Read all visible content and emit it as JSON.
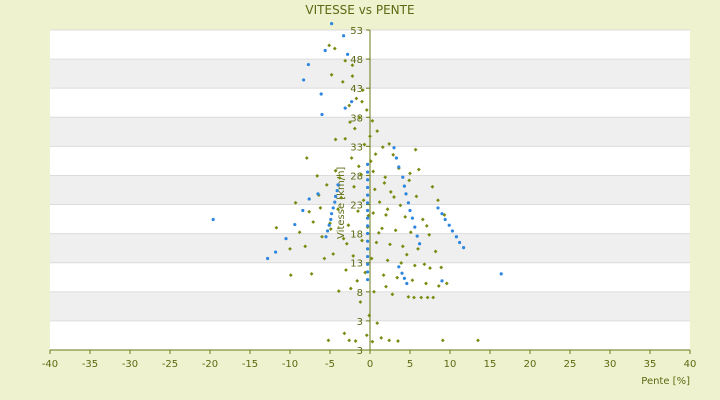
{
  "chart_data": {
    "type": "scatter",
    "title": "VITESSE vs PENTE",
    "xlabel": "Pente [%]",
    "ylabel": "Vitesse [km/h]",
    "xlim": [
      -40,
      40
    ],
    "ylim": [
      3,
      53
    ],
    "x_ticks": [
      "-40",
      "-35",
      "-30",
      "-25",
      "-20",
      "-15",
      "-10",
      "-5",
      "0",
      "5",
      "10",
      "15",
      "20",
      "25",
      "30",
      "35",
      "40"
    ],
    "y_ticks": [
      "53",
      "48",
      "43",
      "38",
      "33",
      "28",
      "23",
      "18",
      "13",
      "8",
      "3",
      "3"
    ],
    "grid": "horizontal alternating bands",
    "legend": "none",
    "colors": {
      "background": "#eef2cf",
      "band_light": "#ffffff",
      "band_dark": "#efefef",
      "axis": "#6b7a18",
      "text": "#5b6a12",
      "series_olive": "#7a8a10",
      "series_blue": "#2e86de"
    },
    "series": [
      {
        "color": "#7a8a10",
        "shape": "diamond",
        "points": [
          [
            -5.1,
            50.6
          ],
          [
            -4.4,
            50.1
          ],
          [
            -3.1,
            48.2
          ],
          [
            -4.8,
            46.0
          ],
          [
            -2.2,
            47.5
          ],
          [
            -3.4,
            44.9
          ],
          [
            -1.7,
            42.3
          ],
          [
            -2.6,
            41.2
          ],
          [
            -1.3,
            39.3
          ],
          [
            -0.4,
            40.5
          ],
          [
            0.3,
            38.8
          ],
          [
            -1.9,
            37.6
          ],
          [
            0.9,
            37.2
          ],
          [
            -3.1,
            36.0
          ],
          [
            -0.7,
            35.1
          ],
          [
            1.6,
            34.7
          ],
          [
            2.9,
            33.5
          ],
          [
            -2.3,
            33.0
          ],
          [
            0.1,
            32.5
          ],
          [
            3.6,
            31.4
          ],
          [
            -4.3,
            31.0
          ],
          [
            -1.1,
            30.4
          ],
          [
            1.9,
            30.0
          ],
          [
            4.9,
            29.5
          ],
          [
            -5.4,
            28.8
          ],
          [
            -2.0,
            28.5
          ],
          [
            0.6,
            28.1
          ],
          [
            2.6,
            27.7
          ],
          [
            5.8,
            27.0
          ],
          [
            -3.6,
            26.8
          ],
          [
            -0.8,
            26.4
          ],
          [
            1.2,
            26.1
          ],
          [
            3.8,
            25.6
          ],
          [
            -6.2,
            25.2
          ],
          [
            -4.0,
            25.0
          ],
          [
            -1.5,
            24.7
          ],
          [
            0.4,
            24.4
          ],
          [
            2.0,
            24.1
          ],
          [
            4.4,
            23.8
          ],
          [
            6.6,
            23.4
          ],
          [
            -7.1,
            23.0
          ],
          [
            -5.0,
            22.8
          ],
          [
            -2.7,
            22.5
          ],
          [
            -0.3,
            22.2
          ],
          [
            1.5,
            22.0
          ],
          [
            3.2,
            21.7
          ],
          [
            5.1,
            21.4
          ],
          [
            7.4,
            21.0
          ],
          [
            -6.0,
            20.7
          ],
          [
            -3.3,
            20.4
          ],
          [
            -1.0,
            20.1
          ],
          [
            0.8,
            19.8
          ],
          [
            2.5,
            19.5
          ],
          [
            4.1,
            19.2
          ],
          [
            6.0,
            18.8
          ],
          [
            8.2,
            18.4
          ],
          [
            -4.6,
            18.0
          ],
          [
            -2.1,
            17.7
          ],
          [
            0.2,
            17.3
          ],
          [
            2.2,
            17.0
          ],
          [
            3.9,
            16.6
          ],
          [
            5.6,
            16.2
          ],
          [
            7.5,
            15.8
          ],
          [
            -3.0,
            15.5
          ],
          [
            -0.6,
            15.1
          ],
          [
            1.7,
            14.7
          ],
          [
            3.4,
            14.3
          ],
          [
            5.3,
            13.9
          ],
          [
            7.0,
            13.4
          ],
          [
            8.6,
            13.0
          ],
          [
            -2.4,
            12.6
          ],
          [
            0.5,
            12.1
          ],
          [
            2.8,
            11.7
          ],
          [
            4.8,
            11.3
          ],
          [
            5.5,
            11.2
          ],
          [
            6.4,
            11.2
          ],
          [
            7.2,
            11.2
          ],
          [
            7.9,
            11.2
          ],
          [
            -1.2,
            10.5
          ],
          [
            -0.1,
            8.4
          ],
          [
            0.9,
            7.2
          ],
          [
            -0.4,
            5.3
          ],
          [
            0.3,
            4.3
          ],
          [
            -3.2,
            5.6
          ],
          [
            -2.6,
            4.5
          ],
          [
            1.4,
            4.9
          ],
          [
            2.4,
            4.5
          ],
          [
            3.5,
            4.4
          ],
          [
            -5.2,
            4.5
          ],
          [
            -1.8,
            4.4
          ],
          [
            9.1,
            4.5
          ],
          [
            13.5,
            4.5
          ],
          [
            -9.3,
            26.0
          ],
          [
            -7.9,
            33.0
          ],
          [
            -6.6,
            30.2
          ],
          [
            -8.8,
            21.4
          ],
          [
            -10.0,
            18.8
          ],
          [
            -11.7,
            22.1
          ],
          [
            -9.9,
            14.7
          ],
          [
            -7.3,
            14.9
          ],
          [
            -4.3,
            35.9
          ],
          [
            -2.5,
            38.6
          ],
          [
            2.4,
            35.2
          ],
          [
            5.7,
            34.3
          ],
          [
            6.1,
            31.2
          ],
          [
            7.8,
            28.5
          ],
          [
            8.5,
            26.4
          ],
          [
            9.3,
            24.1
          ],
          [
            7.1,
            22.4
          ],
          [
            5.0,
            30.6
          ],
          [
            -6.4,
            27.2
          ],
          [
            -7.6,
            24.6
          ],
          [
            -8.1,
            19.2
          ],
          [
            -4.9,
            21.9
          ],
          [
            -3.8,
            29.9
          ],
          [
            -1.4,
            31.7
          ],
          [
            0.7,
            33.6
          ],
          [
            1.8,
            29.1
          ],
          [
            3.0,
            26.9
          ],
          [
            -0.2,
            24.0
          ],
          [
            1.1,
            21.3
          ],
          [
            -2.9,
            19.6
          ],
          [
            -5.7,
            17.3
          ],
          [
            4.6,
            17.9
          ],
          [
            6.8,
            16.4
          ],
          [
            8.9,
            15.9
          ],
          [
            9.6,
            13.4
          ],
          [
            -1.6,
            13.8
          ],
          [
            -3.9,
            12.2
          ],
          [
            2.0,
            12.9
          ],
          [
            0.0,
            36.4
          ],
          [
            -0.9,
            43.6
          ],
          [
            -2.2,
            45.8
          ],
          [
            -1.0,
            41.8
          ],
          [
            0.4,
            30.9
          ],
          [
            2.2,
            25.0
          ]
        ]
      },
      {
        "color": "#2e86de",
        "shape": "dot",
        "points": [
          [
            -4.8,
            54.0
          ],
          [
            -5.6,
            49.8
          ],
          [
            -7.7,
            47.6
          ],
          [
            -8.3,
            45.2
          ],
          [
            -6.1,
            43.0
          ],
          [
            -3.3,
            52.1
          ],
          [
            -2.8,
            49.2
          ],
          [
            -6.0,
            39.8
          ],
          [
            -2.3,
            41.8
          ],
          [
            -3.1,
            40.8
          ],
          [
            -19.6,
            23.4
          ],
          [
            -12.8,
            17.3
          ],
          [
            -11.8,
            18.3
          ],
          [
            -10.5,
            20.4
          ],
          [
            -9.4,
            22.6
          ],
          [
            -8.4,
            24.8
          ],
          [
            -7.6,
            26.6
          ],
          [
            -6.5,
            27.4
          ],
          [
            -5.5,
            20.7
          ],
          [
            -5.3,
            21.6
          ],
          [
            -5.1,
            22.5
          ],
          [
            -4.9,
            23.4
          ],
          [
            -4.8,
            24.3
          ],
          [
            -4.6,
            25.2
          ],
          [
            -4.4,
            26.1
          ],
          [
            -4.3,
            27.0
          ],
          [
            -4.1,
            27.9
          ],
          [
            -4.0,
            28.8
          ],
          [
            -0.3,
            14.0
          ],
          [
            -0.3,
            15.2
          ],
          [
            -0.3,
            16.4
          ],
          [
            -0.3,
            17.6
          ],
          [
            -0.3,
            18.8
          ],
          [
            -0.3,
            20.0
          ],
          [
            -0.3,
            21.2
          ],
          [
            -0.3,
            22.4
          ],
          [
            -0.3,
            23.6
          ],
          [
            -0.3,
            24.8
          ],
          [
            -0.3,
            26.0
          ],
          [
            -0.3,
            27.2
          ],
          [
            -0.3,
            28.4
          ],
          [
            -0.3,
            29.6
          ],
          [
            -0.3,
            30.8
          ],
          [
            -0.3,
            32.0
          ],
          [
            3.6,
            31.6
          ],
          [
            3.3,
            33.0
          ],
          [
            3.0,
            34.6
          ],
          [
            4.1,
            30.0
          ],
          [
            4.3,
            28.6
          ],
          [
            4.5,
            27.4
          ],
          [
            4.8,
            26.0
          ],
          [
            5.0,
            24.8
          ],
          [
            5.3,
            23.6
          ],
          [
            5.6,
            22.2
          ],
          [
            5.9,
            20.8
          ],
          [
            6.2,
            19.6
          ],
          [
            3.6,
            16.0
          ],
          [
            4.0,
            15.0
          ],
          [
            4.3,
            14.2
          ],
          [
            4.6,
            13.4
          ],
          [
            8.5,
            25.2
          ],
          [
            9.0,
            24.3
          ],
          [
            9.4,
            23.4
          ],
          [
            9.9,
            22.5
          ],
          [
            10.3,
            21.6
          ],
          [
            10.8,
            20.7
          ],
          [
            11.2,
            19.8
          ],
          [
            11.7,
            19.0
          ],
          [
            9.0,
            13.8
          ],
          [
            16.4,
            14.9
          ]
        ]
      }
    ]
  }
}
